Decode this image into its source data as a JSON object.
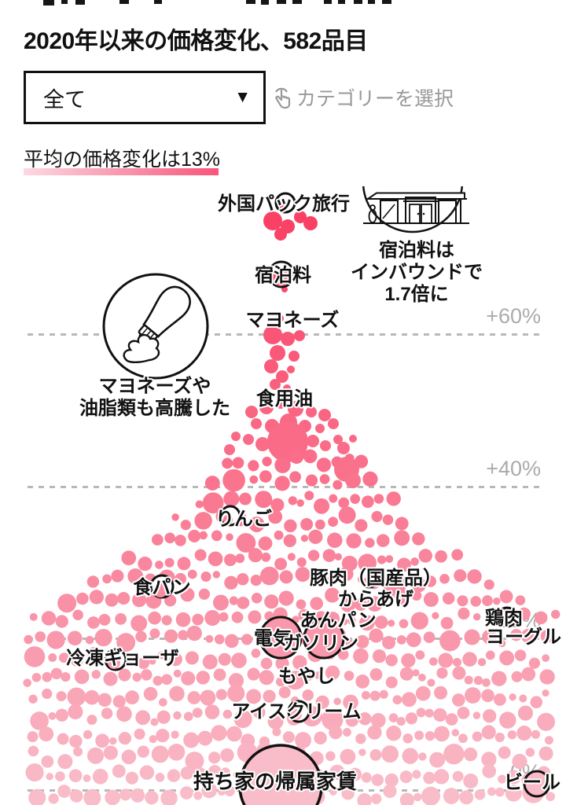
{
  "header": {
    "title": "2020年以来の価格変化、582品目"
  },
  "filter": {
    "selected": "全て",
    "hint": "カテゴリーを選択"
  },
  "subtitle": {
    "text": "平均の価格変化は13%"
  },
  "chart_data": {
    "type": "scatter",
    "variant": "beeswarm-bubble",
    "title": "2020年以来の価格変化、582品目",
    "total_items": 582,
    "average_change_pct": 13,
    "y_axis": {
      "unit": "%",
      "visible_range": [
        0,
        79
      ],
      "gridlines": "dotted",
      "ticks": [
        {
          "label": "+60%",
          "value": 60
        },
        {
          "label": "+40%",
          "value": 40
        },
        {
          "label": "+20%",
          "value": 20
        },
        {
          "label": "0%",
          "value": 0
        }
      ]
    },
    "labeled_points": [
      {
        "label": "外国パック旅行",
        "value_pct": 75
      },
      {
        "label": "宿泊料",
        "value_pct": 68
      },
      {
        "label": "マヨネーズ",
        "value_pct": 61
      },
      {
        "label": "食用油",
        "value_pct": 50
      },
      {
        "label": "りんご",
        "value_pct": 36
      },
      {
        "label": "食パン",
        "value_pct": 27
      },
      {
        "label": "豚肉（国産品）",
        "value_pct": 28
      },
      {
        "label": "からあげ",
        "value_pct": 25
      },
      {
        "label": "あんパン",
        "value_pct": 22
      },
      {
        "label": "電気",
        "value_pct": 20
      },
      {
        "label": "ガソリン",
        "value_pct": 20
      },
      {
        "label": "鶏肉",
        "value_pct": 23
      },
      {
        "label": "ヨーグルト",
        "value_pct": 20
      },
      {
        "label": "冷凍ギョーザ",
        "value_pct": 17
      },
      {
        "label": "もやし",
        "value_pct": 15
      },
      {
        "label": "アイスクリーム",
        "value_pct": 10
      },
      {
        "label": "持ち家の帰属家賃",
        "value_pct": 1
      },
      {
        "label": "ビール",
        "value_pct": 1
      }
    ],
    "annotations": [
      {
        "icon": "hotel-icon",
        "lines": [
          "宿泊料は",
          "インバウンドで",
          "1.7倍に"
        ]
      },
      {
        "icon": "mayonnaise-icon",
        "lines": [
          "マヨネーズや",
          "油脂類も高騰した"
        ]
      }
    ],
    "colors": {
      "bubble_top": "#fa3e63",
      "bubble_bottom": "#f9bcc9",
      "highlight_stroke": "#111111",
      "gridline": "#b8b8b8",
      "tick_label": "#ababab",
      "subtitle_underline": "#f85579"
    }
  }
}
